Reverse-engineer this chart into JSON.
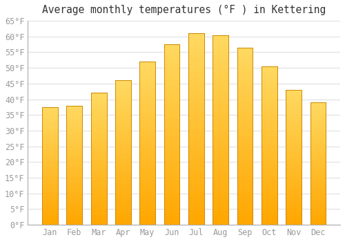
{
  "title": "Average monthly temperatures (°F ) in Kettering",
  "months": [
    "Jan",
    "Feb",
    "Mar",
    "Apr",
    "May",
    "Jun",
    "Jul",
    "Aug",
    "Sep",
    "Oct",
    "Nov",
    "Dec"
  ],
  "values": [
    37.5,
    38,
    42,
    46,
    52,
    57.5,
    61,
    60.5,
    56.5,
    50.5,
    43,
    39
  ],
  "bar_color_bottom": "#FFA500",
  "bar_color_top": "#FFD060",
  "bar_border_color": "#CC8800",
  "background_color": "#FFFFFF",
  "grid_color": "#E0E0E0",
  "ylim": [
    0,
    65
  ],
  "yticks": [
    0,
    5,
    10,
    15,
    20,
    25,
    30,
    35,
    40,
    45,
    50,
    55,
    60,
    65
  ],
  "title_fontsize": 10.5,
  "tick_fontsize": 8.5,
  "tick_color": "#999999",
  "bar_width": 0.65,
  "figsize": [
    5.0,
    3.5
  ],
  "dpi": 100
}
